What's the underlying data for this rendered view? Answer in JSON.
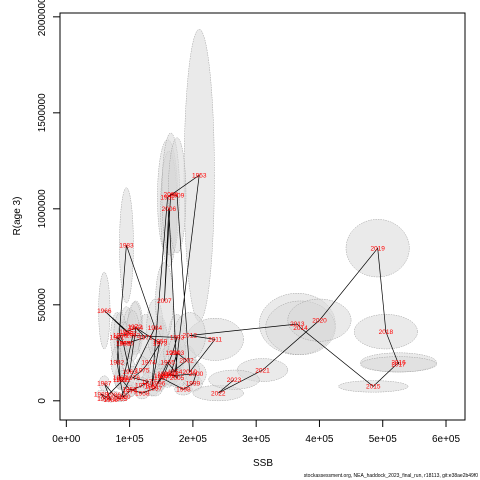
{
  "footer": "stockassessment.org, NEA_haddock_2023_final_run, r18113, git:e38ae2b49f0",
  "chart_data": {
    "type": "scatter",
    "xlabel": "SSB",
    "ylabel": "R(age 3)",
    "xlim": [
      -10000,
      630000
    ],
    "ylim": [
      -100000,
      2020000
    ],
    "x_ticks": [
      {
        "value": 0,
        "label": "0e+00"
      },
      {
        "value": 100000,
        "label": "1e+05"
      },
      {
        "value": 200000,
        "label": "2e+05"
      },
      {
        "value": 300000,
        "label": "3e+05"
      },
      {
        "value": 400000,
        "label": "4e+05"
      },
      {
        "value": 500000,
        "label": "5e+05"
      },
      {
        "value": 600000,
        "label": "6e+05"
      }
    ],
    "y_ticks": [
      {
        "value": 0,
        "label": "0"
      },
      {
        "value": 500000,
        "label": "500000"
      },
      {
        "value": 1000000,
        "label": "1000000"
      },
      {
        "value": 1500000,
        "label": "1500000"
      },
      {
        "value": 2000000,
        "label": "2000000"
      }
    ],
    "point_color": "#ff0000",
    "line_color": "#000000",
    "ellipse_fill": "#d9d9d9",
    "ellipse_stroke": "#9a9a9a",
    "points": [
      {
        "year": "1950",
        "ssb": 148000,
        "rec": 310000,
        "sx": 12000,
        "sy": 130000
      },
      {
        "year": "1951",
        "ssb": 135000,
        "rec": 75000,
        "sx": 12000,
        "sy": 50000
      },
      {
        "year": "1952",
        "ssb": 160000,
        "rec": 1060000,
        "sx": 16000,
        "sy": 300000
      },
      {
        "year": "1953",
        "ssb": 210000,
        "rec": 1175000,
        "sx": 24000,
        "sy": 760000
      },
      {
        "year": "1954",
        "ssb": 172000,
        "rec": 150000,
        "sx": 14000,
        "sy": 70000
      },
      {
        "year": "1955",
        "ssb": 160000,
        "rec": 200000,
        "sx": 13000,
        "sy": 80000
      },
      {
        "year": "1956",
        "ssb": 150000,
        "rec": 130000,
        "sx": 13000,
        "sy": 60000
      },
      {
        "year": "1957",
        "ssb": 140000,
        "rec": 65000,
        "sx": 12000,
        "sy": 40000
      },
      {
        "year": "1958",
        "ssb": 120000,
        "rec": 40000,
        "sx": 11000,
        "sy": 30000
      },
      {
        "year": "1959",
        "ssb": 100000,
        "rec": 60000,
        "sx": 10000,
        "sy": 40000
      },
      {
        "year": "1960",
        "ssb": 85000,
        "rec": 120000,
        "sx": 9000,
        "sy": 60000
      },
      {
        "year": "1961",
        "ssb": 80000,
        "rec": 330000,
        "sx": 10000,
        "sy": 130000
      },
      {
        "year": "1962",
        "ssb": 90000,
        "rec": 300000,
        "sx": 10000,
        "sy": 120000
      },
      {
        "year": "1963",
        "ssb": 100000,
        "rec": 150000,
        "sx": 10000,
        "sy": 70000
      },
      {
        "year": "1964",
        "ssb": 110000,
        "rec": 380000,
        "sx": 11000,
        "sy": 140000
      },
      {
        "year": "1965",
        "ssb": 95000,
        "rec": 360000,
        "sx": 11000,
        "sy": 130000
      },
      {
        "year": "1966",
        "ssb": 60000,
        "rec": 470000,
        "sx": 9000,
        "sy": 200000
      },
      {
        "year": "1967",
        "ssb": 100000,
        "rec": 350000,
        "sx": 11000,
        "sy": 130000
      },
      {
        "year": "1968",
        "ssb": 85000,
        "rec": 340000,
        "sx": 10000,
        "sy": 120000
      },
      {
        "year": "1969",
        "ssb": 90000,
        "rec": 300000,
        "sx": 10000,
        "sy": 110000
      },
      {
        "year": "1970",
        "ssb": 95000,
        "rec": 300000,
        "sx": 10000,
        "sy": 110000
      },
      {
        "year": "1971",
        "ssb": 125000,
        "rec": 330000,
        "sx": 12000,
        "sy": 120000
      },
      {
        "year": "1972",
        "ssb": 108000,
        "rec": 385000,
        "sx": 11000,
        "sy": 130000
      },
      {
        "year": "1973",
        "ssb": 148000,
        "rec": 300000,
        "sx": 13000,
        "sy": 110000
      },
      {
        "year": "1974",
        "ssb": 130000,
        "rec": 200000,
        "sx": 12000,
        "sy": 80000
      },
      {
        "year": "1975",
        "ssb": 120000,
        "rec": 160000,
        "sx": 11000,
        "sy": 70000
      },
      {
        "year": "1976",
        "ssb": 105000,
        "rec": 120000,
        "sx": 10000,
        "sy": 60000
      },
      {
        "year": "1977",
        "ssb": 130000,
        "rec": 100000,
        "sx": 11000,
        "sy": 50000
      },
      {
        "year": "1978",
        "ssb": 120000,
        "rec": 80000,
        "sx": 11000,
        "sy": 40000
      },
      {
        "year": "1979",
        "ssb": 100000,
        "rec": 50000,
        "sx": 10000,
        "sy": 30000
      },
      {
        "year": "1980",
        "ssb": 90000,
        "rec": 20000,
        "sx": 9000,
        "sy": 20000
      },
      {
        "year": "1981",
        "ssb": 85000,
        "rec": 110000,
        "sx": 9000,
        "sy": 50000
      },
      {
        "year": "1982",
        "ssb": 80000,
        "rec": 200000,
        "sx": 9000,
        "sy": 80000
      },
      {
        "year": "1983",
        "ssb": 95000,
        "rec": 810000,
        "sx": 11000,
        "sy": 300000
      },
      {
        "year": "1984",
        "ssb": 140000,
        "rec": 380000,
        "sx": 13000,
        "sy": 150000
      },
      {
        "year": "1985",
        "ssb": 85000,
        "rec": 10000,
        "sx": 9000,
        "sy": 15000
      },
      {
        "year": "1986",
        "ssb": 75000,
        "rec": 30000,
        "sx": 9000,
        "sy": 20000
      },
      {
        "year": "1987",
        "ssb": 60000,
        "rec": 90000,
        "sx": 8000,
        "sy": 40000
      },
      {
        "year": "1988",
        "ssb": 70000,
        "rec": 5000,
        "sx": 8000,
        "sy": 12000
      },
      {
        "year": "1989",
        "ssb": 55000,
        "rec": 35000,
        "sx": 8000,
        "sy": 20000
      },
      {
        "year": "1990",
        "ssb": 60000,
        "rec": 10000,
        "sx": 8000,
        "sy": 12000
      },
      {
        "year": "1991",
        "ssb": 90000,
        "rec": 110000,
        "sx": 9000,
        "sy": 50000
      },
      {
        "year": "1992",
        "ssb": 105000,
        "rec": 340000,
        "sx": 11000,
        "sy": 130000
      },
      {
        "year": "1993",
        "ssb": 175000,
        "rec": 330000,
        "sx": 14000,
        "sy": 120000
      },
      {
        "year": "1994",
        "ssb": 168000,
        "rec": 250000,
        "sx": 14000,
        "sy": 90000
      },
      {
        "year": "1995",
        "ssb": 155000,
        "rec": 140000,
        "sx": 13000,
        "sy": 60000
      },
      {
        "year": "1996",
        "ssb": 145000,
        "rec": 90000,
        "sx": 12000,
        "sy": 40000
      },
      {
        "year": "1997",
        "ssb": 150000,
        "rec": 120000,
        "sx": 12000,
        "sy": 50000
      },
      {
        "year": "1998",
        "ssb": 185000,
        "rec": 60000,
        "sx": 14000,
        "sy": 30000
      },
      {
        "year": "1999",
        "ssb": 200000,
        "rec": 90000,
        "sx": 15000,
        "sy": 40000
      },
      {
        "year": "2000",
        "ssb": 205000,
        "rec": 140000,
        "sx": 16000,
        "sy": 60000
      },
      {
        "year": "2001",
        "ssb": 160000,
        "rec": 130000,
        "sx": 13000,
        "sy": 60000
      },
      {
        "year": "2002",
        "ssb": 190000,
        "rec": 210000,
        "sx": 15000,
        "sy": 80000
      },
      {
        "year": "2003",
        "ssb": 175000,
        "rec": 250000,
        "sx": 14000,
        "sy": 90000
      },
      {
        "year": "2004",
        "ssb": 165000,
        "rec": 140000,
        "sx": 13000,
        "sy": 60000
      },
      {
        "year": "2005",
        "ssb": 175000,
        "rec": 120000,
        "sx": 14000,
        "sy": 50000
      },
      {
        "year": "2006",
        "ssb": 162000,
        "rec": 1000000,
        "sx": 13000,
        "sy": 300000
      },
      {
        "year": "2007",
        "ssb": 155000,
        "rec": 520000,
        "sx": 14000,
        "sy": 200000
      },
      {
        "year": "2008",
        "ssb": 165000,
        "rec": 1075000,
        "sx": 14000,
        "sy": 320000
      },
      {
        "year": "2009",
        "ssb": 175000,
        "rec": 1070000,
        "sx": 14000,
        "sy": 300000
      },
      {
        "year": "2010",
        "ssb": 195000,
        "rec": 150000,
        "sx": 16000,
        "sy": 70000
      },
      {
        "year": "2011",
        "ssb": 235000,
        "rec": 320000,
        "sx": 45000,
        "sy": 110000
      },
      {
        "year": "2012",
        "ssb": 195000,
        "rec": 340000,
        "sx": 25000,
        "sy": 120000
      },
      {
        "year": "2013",
        "ssb": 365000,
        "rec": 400000,
        "sx": 60000,
        "sy": 160000
      },
      {
        "year": "2014",
        "ssb": 370000,
        "rec": 380000,
        "sx": 55000,
        "sy": 140000
      },
      {
        "year": "2015",
        "ssb": 485000,
        "rec": 75000,
        "sx": 55000,
        "sy": 30000
      },
      {
        "year": "2016",
        "ssb": 525000,
        "rec": 200000,
        "sx": 60000,
        "sy": 50000
      },
      {
        "year": "2017",
        "ssb": 525000,
        "rec": 190000,
        "sx": 60000,
        "sy": 40000
      },
      {
        "year": "2018",
        "ssb": 505000,
        "rec": 360000,
        "sx": 50000,
        "sy": 90000
      },
      {
        "year": "2019",
        "ssb": 492000,
        "rec": 795000,
        "sx": 50000,
        "sy": 150000
      },
      {
        "year": "2020",
        "ssb": 400000,
        "rec": 420000,
        "sx": 50000,
        "sy": 110000
      },
      {
        "year": "2021",
        "ssb": 310000,
        "rec": 160000,
        "sx": 40000,
        "sy": 60000
      },
      {
        "year": "2022",
        "ssb": 240000,
        "rec": 40000,
        "sx": 40000,
        "sy": 40000
      },
      {
        "year": "2023",
        "ssb": 265000,
        "rec": 110000,
        "sx": 40000,
        "sy": 50000
      }
    ]
  }
}
